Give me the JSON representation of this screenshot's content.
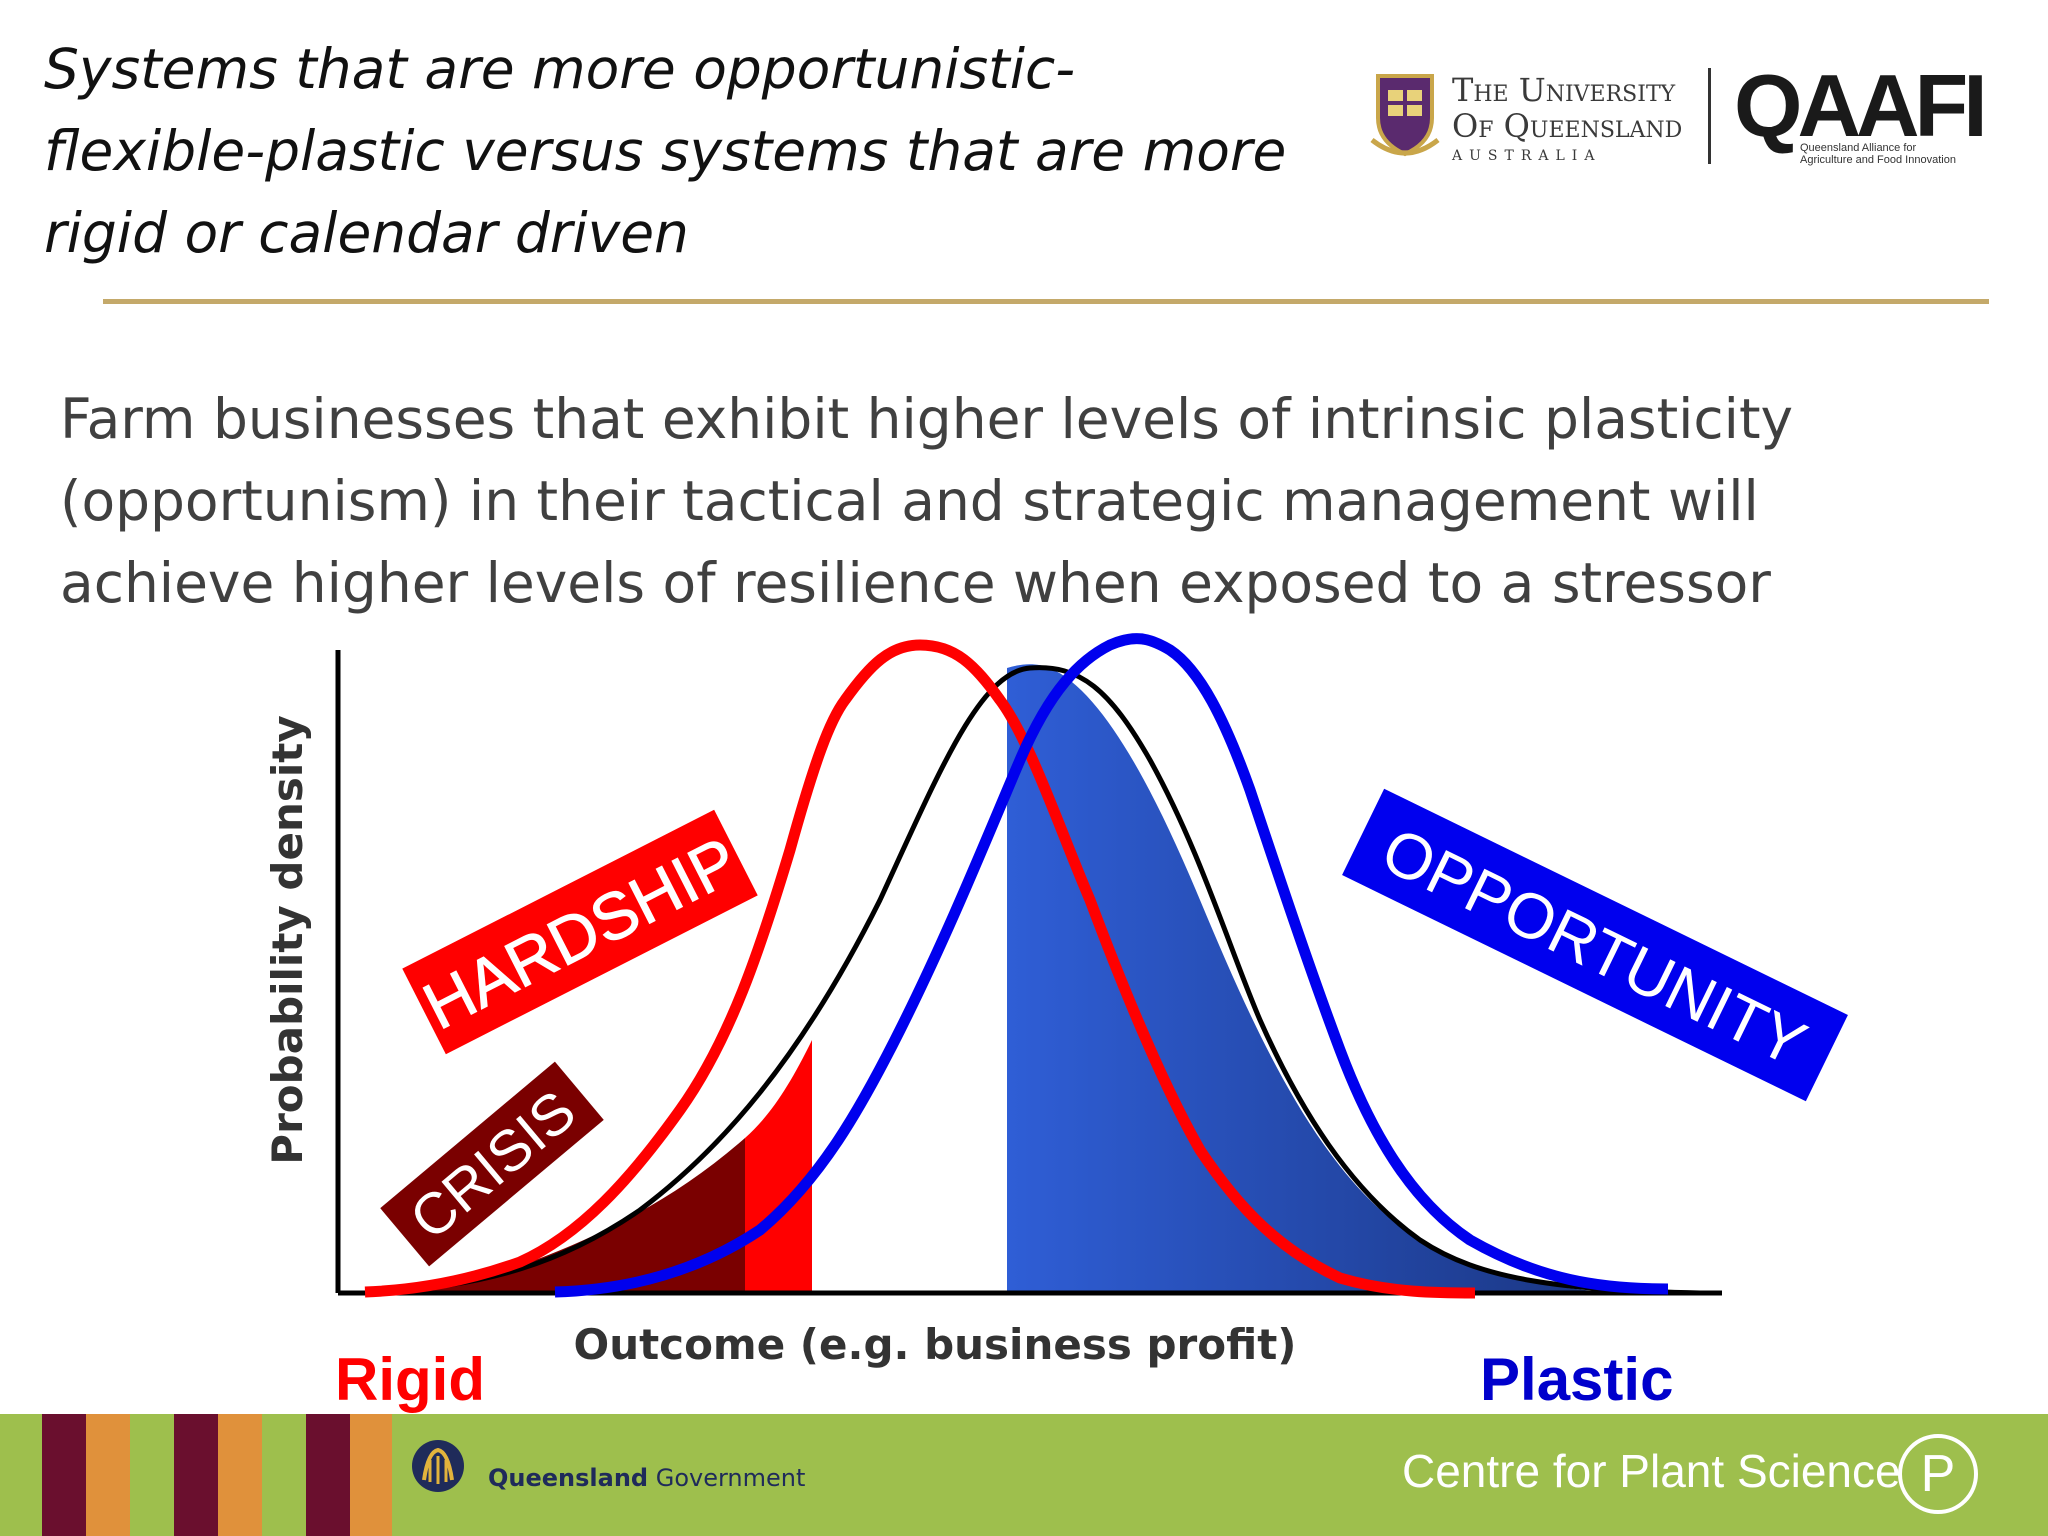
{
  "header": {
    "title_lines": [
      "Systems that are more opportunistic-",
      "flexible-plastic versus systems that are more",
      "rigid or calendar driven"
    ]
  },
  "logos": {
    "uq_line1": "The University",
    "uq_line2": "Of Queensland",
    "uq_country": "AUSTRALIA",
    "qaafi": "QAAFI",
    "qaafi_sub_1": "Queensland Alliance for",
    "qaafi_sub_2": "Agriculture and Food Innovation"
  },
  "body": {
    "lines": [
      "Farm businesses that exhibit higher levels of intrinsic plasticity",
      "(opportunism) in their tactical and strategic management will",
      "achieve higher levels of resilience when exposed to a stressor"
    ]
  },
  "diagram": {
    "y_axis_label": "Probability density",
    "x_axis_label": "Outcome (e.g. business profit)",
    "left_label": "Rigid",
    "right_label": "Plastic",
    "tags": {
      "hardship": "HARDSHIP",
      "crisis": "CRISIS",
      "opportunity": "OPPORTUNITY"
    },
    "colors": {
      "rigid": "#ff0000",
      "plastic": "#0000ee",
      "baseline": "#000000",
      "crisis": "#7a0000",
      "opportunity_fill_light": "#2f5ed6",
      "opportunity_fill_dark": "#1a3580"
    }
  },
  "footer": {
    "qg_bold": "Queensland",
    "qg_rest": " Government",
    "centre": "Centre for Plant Science",
    "centre_icon_letter": "P",
    "icons": [
      "queensland-government-crest-icon",
      "plant-science-p-icon"
    ]
  }
}
